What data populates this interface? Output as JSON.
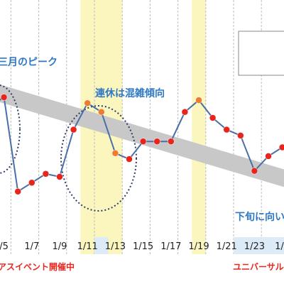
{
  "chart_data": {
    "type": "line",
    "title": "",
    "xlabel": "",
    "ylabel": "",
    "x": [
      "1/4",
      "1/5",
      "1/6",
      "1/7",
      "1/8",
      "1/9",
      "1/10",
      "1/11",
      "1/12",
      "1/13",
      "1/14",
      "1/15",
      "1/16",
      "1/17",
      "1/18",
      "1/19",
      "1/20",
      "1/21",
      "1/22",
      "1/23",
      "1/24",
      "1/25"
    ],
    "x_tick_labels": [
      "1/5",
      "1/7",
      "1/9",
      "1/11",
      "1/13",
      "1/15",
      "1/17",
      "1/19",
      "1/21",
      "1/23",
      "1/25"
    ],
    "x_tick_label_display": [
      "/5",
      "1/7",
      "1/9",
      "1/11",
      "1/13",
      "1/15",
      "1/17",
      "1/19",
      "1/21",
      "1/23",
      "1/2"
    ],
    "highlight_dates": [
      "1/12",
      "1/22",
      "1/23",
      "1/24",
      "1/25"
    ],
    "series": [
      {
        "values": [
          22,
          23.5,
          7.5,
          9,
          10.5,
          10,
          18,
          22.5,
          21,
          14,
          13,
          16,
          16,
          16,
          21,
          23,
          20,
          18,
          17,
          11,
          13.5,
          15
        ],
        "color": "#E8251C",
        "line_color": "#4A6FA8"
      }
    ],
    "trend_band": {
      "start": 25,
      "end": 9.5,
      "width": 3,
      "color": "#C8C8C8"
    },
    "shaded_periods": [
      {
        "from": "1/4",
        "to": "1/4",
        "color": "#FAF6BE"
      },
      {
        "from": "1/11",
        "to": "1/13",
        "color": "#FAF6BE"
      },
      {
        "from": "1/19",
        "to": "1/19",
        "color": "#FAF6BE"
      }
    ],
    "gridlines": "vertical-dashed",
    "ylim": [
      0,
      40
    ],
    "legend_position": "top-right",
    "annotations": [
      {
        "text": "三月のピーク",
        "color": "#2F78C4"
      },
      {
        "text": "連休は混雑傾向",
        "color": "#2F78C4"
      },
      {
        "text": "下旬に向い",
        "color": "#2F78C4"
      }
    ],
    "events": [
      {
        "text": "アスイベント開催中",
        "color": "#E8251C"
      },
      {
        "text": "ユニバーサル",
        "color": "#E8251C"
      }
    ]
  }
}
